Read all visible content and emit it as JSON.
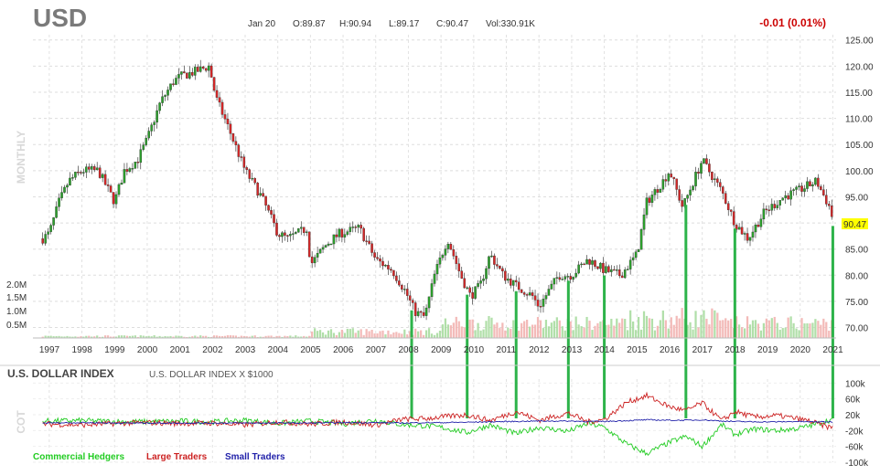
{
  "header": {
    "symbol": "USD",
    "date": "Jan 20",
    "open": "O:89.87",
    "high": "H:90.94",
    "low": "L:89.17",
    "close": "C:90.47",
    "volume": "Vol:330.91K",
    "change": "-0.01 (0.01%)",
    "period": "MONTHLY",
    "last_price": "90.47"
  },
  "cot_panel": {
    "title": "U.S. DOLLAR INDEX",
    "subtitle": "U.S. DOLLAR INDEX X $1000",
    "side_label": "COT",
    "legend": [
      {
        "label": "Commercial Hedgers",
        "color": "#22cc22"
      },
      {
        "label": "Large Traders",
        "color": "#cc2222"
      },
      {
        "label": "Small Traders",
        "color": "#2222aa"
      }
    ]
  },
  "colors": {
    "up": "#2ca02c",
    "down": "#d62728",
    "marker": "#2db34a",
    "change": "#cc0000",
    "price_tag": "#ffff00"
  },
  "chart_data": [
    {
      "type": "line",
      "title": "USD",
      "x": [
        1996.8,
        1997.0,
        1997.3,
        1997.6,
        1998.0,
        1998.5,
        1999.0,
        1999.3,
        1999.7,
        2000.0,
        2000.4,
        2000.8,
        2001.0,
        2001.5,
        2001.9,
        2002.1,
        2002.5,
        2003.0,
        2003.5,
        2004.0,
        2004.3,
        2004.9,
        2005.0,
        2005.5,
        2005.9,
        2006.5,
        2007.0,
        2007.5,
        2007.9,
        2008.2,
        2008.5,
        2008.8,
        2009.2,
        2009.6,
        2009.9,
        2010.2,
        2010.5,
        2010.9,
        2011.3,
        2011.8,
        2012.0,
        2012.6,
        2013.0,
        2013.5,
        2014.0,
        2014.5,
        2015.0,
        2015.3,
        2015.8,
        2016.0,
        2016.4,
        2016.8,
        2017.0,
        2017.6,
        2018.0,
        2018.4,
        2018.9,
        2019.5,
        2019.9,
        2020.2,
        2020.5,
        2020.9,
        2021.0
      ],
      "values": [
        87,
        88,
        94,
        98,
        100,
        100,
        94,
        100,
        102,
        106,
        113,
        117,
        118,
        119,
        120,
        114,
        108,
        100,
        95,
        88,
        87,
        89,
        82,
        86,
        88,
        89,
        83,
        81,
        77,
        73,
        72,
        80,
        87,
        80,
        76,
        78,
        84,
        80,
        78,
        76,
        74,
        80,
        80,
        83,
        81,
        80,
        84,
        94,
        98,
        100,
        93,
        99,
        102,
        96,
        90,
        87,
        92,
        95,
        96,
        97,
        98,
        93,
        90.47
      ],
      "xlabel": "",
      "ylabel": "",
      "ylim": [
        68,
        126
      ],
      "y_ticks": [
        "125.00",
        "120.00",
        "115.00",
        "110.00",
        "105.00",
        "100.00",
        "95.00",
        "90.00",
        "85.00",
        "80.00",
        "75.00",
        "70.00"
      ],
      "x_ticks": [
        "1997",
        "1998",
        "1999",
        "2000",
        "2001",
        "2002",
        "2003",
        "2004",
        "2005",
        "2006",
        "2007",
        "2008",
        "2009",
        "2010",
        "2011",
        "2012",
        "2013",
        "2014",
        "2015",
        "2016",
        "2017",
        "2018",
        "2019",
        "2020",
        "2021"
      ],
      "volume_ticks": [
        "2.0M",
        "1.5M",
        "1.0M",
        "0.5M"
      ],
      "markers": [
        2008.1,
        2009.8,
        2011.3,
        2012.9,
        2014.0,
        2016.5,
        2018.0,
        2021.0
      ],
      "grid": true
    },
    {
      "type": "line",
      "title": "U.S. DOLLAR INDEX",
      "x": [
        1996.8,
        1998.0,
        1999.0,
        2000.0,
        2001.0,
        2002.0,
        2003.0,
        2004.0,
        2005.0,
        2006.0,
        2007.0,
        2007.8,
        2008.5,
        2009.0,
        2009.8,
        2010.5,
        2011.3,
        2012.0,
        2012.9,
        2013.5,
        2014.0,
        2014.7,
        2015.3,
        2016.0,
        2016.5,
        2017.0,
        2017.6,
        2018.0,
        2018.6,
        2019.3,
        2019.9,
        2020.3,
        2020.8,
        2021.0
      ],
      "series": [
        {
          "name": "Commercial Hedgers",
          "values": [
            4,
            5,
            3,
            2,
            4,
            2,
            6,
            -2,
            4,
            -3,
            6,
            -5,
            -8,
            -12,
            -25,
            -6,
            -28,
            -12,
            -22,
            -2,
            -12,
            -55,
            -78,
            -50,
            -35,
            -60,
            -5,
            -30,
            -16,
            -20,
            -15,
            -8,
            4,
            8
          ]
        },
        {
          "name": "Large Traders",
          "values": [
            -3,
            -6,
            -2,
            0,
            -2,
            -1,
            -6,
            2,
            -4,
            2,
            -6,
            8,
            10,
            14,
            20,
            5,
            28,
            6,
            24,
            2,
            8,
            52,
            68,
            40,
            30,
            50,
            5,
            28,
            14,
            18,
            10,
            4,
            -10,
            -13
          ]
        },
        {
          "name": "Small Traders",
          "values": [
            -1,
            0,
            -1,
            -1,
            -1,
            -1,
            -1,
            -1,
            -1,
            0,
            0,
            -1,
            0,
            0,
            1,
            2,
            3,
            4,
            4,
            3,
            3,
            5,
            7,
            6,
            6,
            7,
            4,
            3,
            2,
            2,
            3,
            2,
            2,
            2
          ]
        }
      ],
      "ylim": [
        -100,
        110
      ],
      "y_ticks": [
        "100k",
        "60k",
        "20k",
        "-20k",
        "-60k",
        "-100k"
      ]
    }
  ]
}
